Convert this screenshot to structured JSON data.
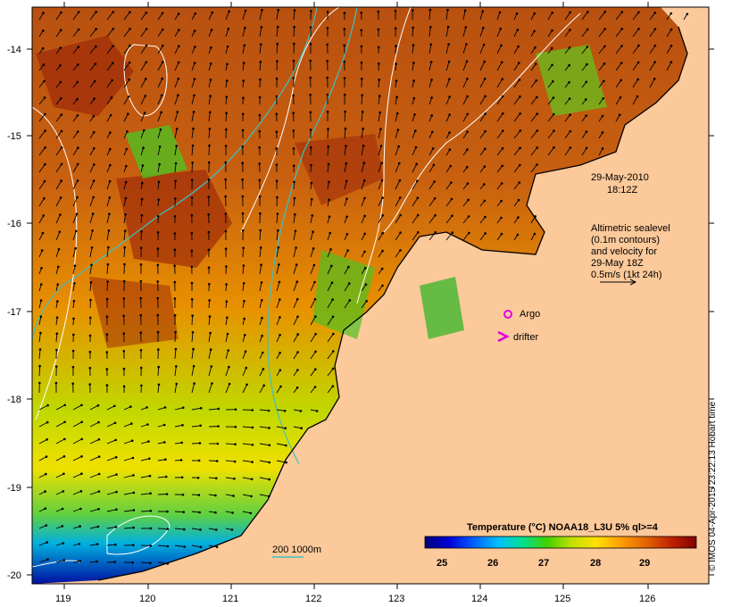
{
  "map": {
    "y_axis_labels": [
      "-14",
      "-15",
      "-16",
      "-17",
      "-18",
      "-19",
      "-20"
    ],
    "x_axis_labels": [
      "119",
      "120",
      "121",
      "122",
      "123",
      "124",
      "125",
      "126"
    ],
    "date": "29-May-2010",
    "time": "18:12Z",
    "altimetry_note": [
      "Altimetric sealevel",
      "(0.1m contours)",
      "and velocity for",
      "29-May 18Z",
      "0.5m/s (1kt 24h)"
    ],
    "legend": {
      "argo_label": "Argo",
      "drifter_label": "drifter",
      "argo_color": "#e000e0",
      "drifter_color": "#e000e0"
    },
    "isobath_label": "200  1000m",
    "isobath_color": "#40c0c0",
    "colorbar": {
      "title": "Temperature (°C) NOAA18_L3U 5% ql>=4",
      "ticks": [
        "25",
        "26",
        "27",
        "28",
        "29"
      ],
      "colors": [
        "#00007a",
        "#0000d8",
        "#0060ff",
        "#00c0ff",
        "#00e090",
        "#40d000",
        "#c0e000",
        "#ffe000",
        "#ffa000",
        "#e06000",
        "#c02000",
        "#800000"
      ]
    },
    "land_color": "#fcc99a",
    "credit": "© IMOS 04-Apr-2015 23:22:13 Hobart time"
  }
}
